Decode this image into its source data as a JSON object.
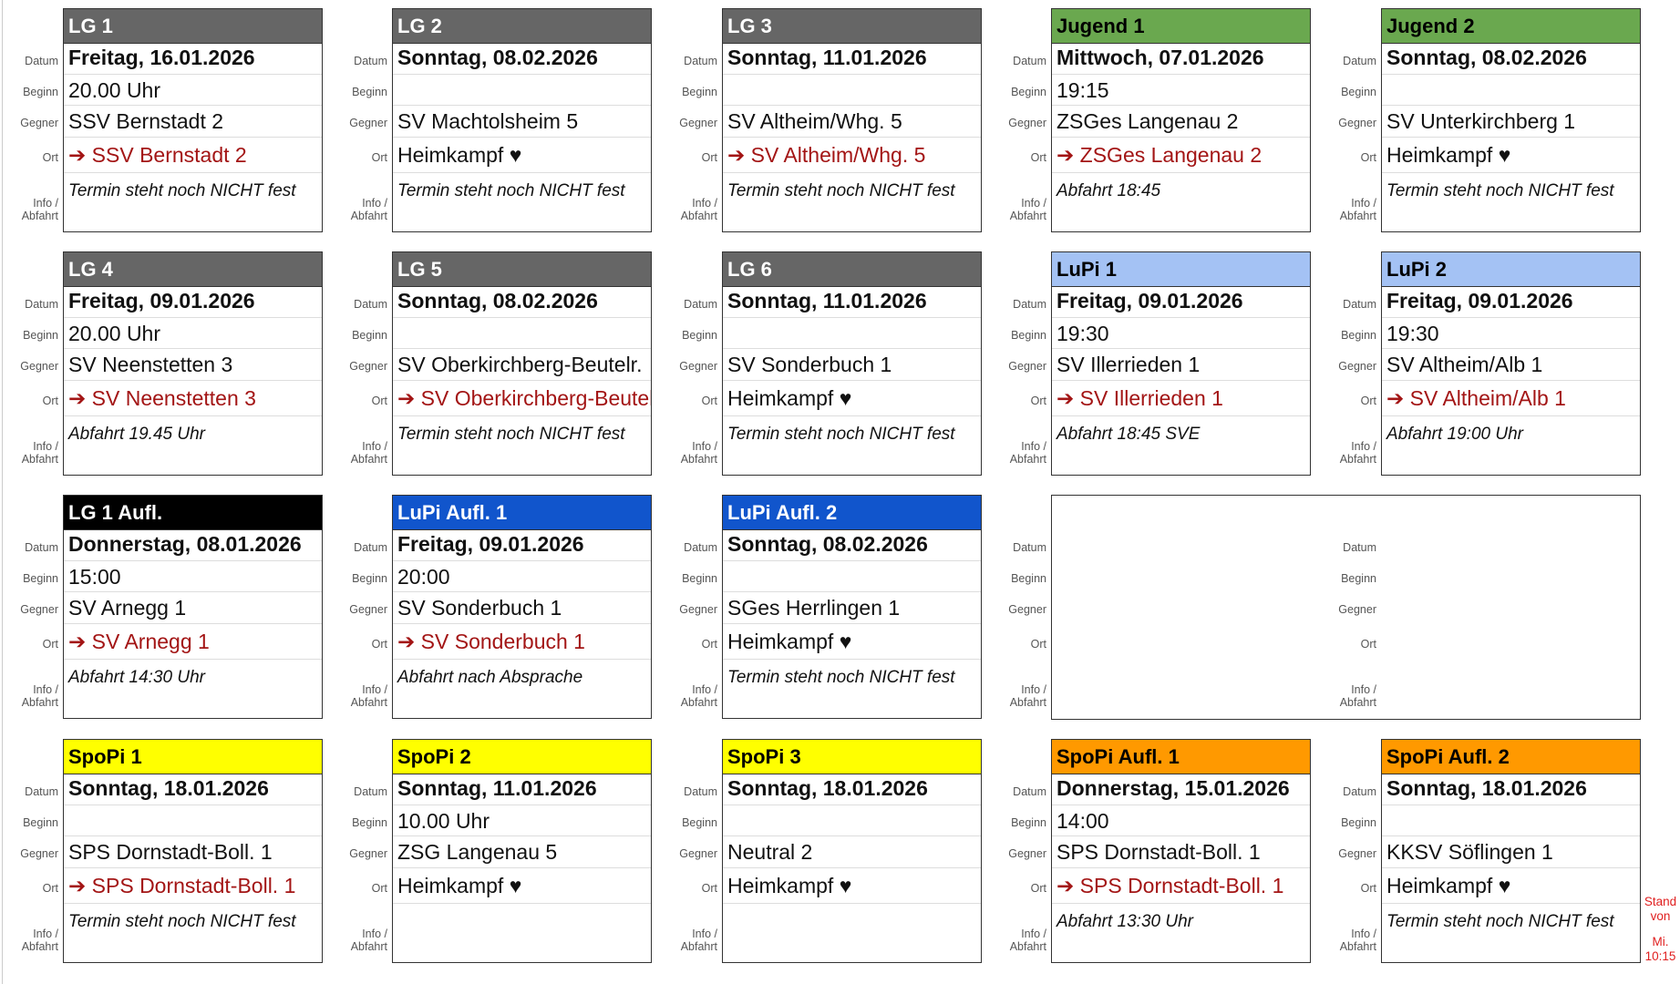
{
  "labels": {
    "datum": "Datum",
    "beginn": "Beginn",
    "gegner": "Gegner",
    "ort": "Ort",
    "info1": "Info /",
    "info2": "Abfahrt"
  },
  "cards": [
    {
      "team": "LG 1",
      "header_bg": "#666666",
      "header_fg": "#ffffff",
      "datum": "Freitag, 16.01.2026",
      "beginn": "20.00 Uhr",
      "gegner": "SSV Bernstadt 2",
      "ort": "➔ SSV Bernstadt 2",
      "away": true,
      "info": "Termin steht noch NICHT fest"
    },
    {
      "team": "LG 2",
      "header_bg": "#666666",
      "header_fg": "#ffffff",
      "datum": "Sonntag, 08.02.2026",
      "beginn": "",
      "gegner": "SV Machtolsheim 5",
      "ort": "Heimkampf ♥",
      "away": false,
      "info": "Termin steht noch NICHT fest"
    },
    {
      "team": "LG 3",
      "header_bg": "#666666",
      "header_fg": "#ffffff",
      "datum": "Sonntag, 11.01.2026",
      "beginn": "",
      "gegner": "SV Altheim/Whg. 5",
      "ort": "➔ SV Altheim/Whg. 5",
      "away": true,
      "info": "Termin steht noch NICHT fest"
    },
    {
      "team": "Jugend 1",
      "header_bg": "#6aa84f",
      "header_fg": "#000000",
      "datum": "Mittwoch, 07.01.2026",
      "beginn": "19:15",
      "gegner": "ZSGes Langenau 2",
      "ort": "➔ ZSGes Langenau 2",
      "away": true,
      "info": "Abfahrt 18:45"
    },
    {
      "team": "Jugend 2",
      "header_bg": "#6aa84f",
      "header_fg": "#000000",
      "datum": "Sonntag, 08.02.2026",
      "beginn": "",
      "gegner": "SV Unterkirchberg 1",
      "ort": "Heimkampf ♥",
      "away": false,
      "info": "Termin steht noch NICHT fest"
    },
    {
      "team": "LG 4",
      "header_bg": "#666666",
      "header_fg": "#ffffff",
      "datum": "Freitag, 09.01.2026",
      "beginn": "20.00 Uhr",
      "gegner": "SV Neenstetten 3",
      "ort": "➔ SV Neenstetten 3",
      "away": true,
      "info": "Abfahrt 19.45 Uhr"
    },
    {
      "team": "LG 5",
      "header_bg": "#666666",
      "header_fg": "#ffffff",
      "datum": "Sonntag, 08.02.2026",
      "beginn": "",
      "gegner": "SV Oberkirchberg-Beutelr.",
      "ort": "➔ SV Oberkirchberg-Beutelr.",
      "away": true,
      "info": "Termin steht noch NICHT fest"
    },
    {
      "team": "LG 6",
      "header_bg": "#666666",
      "header_fg": "#ffffff",
      "datum": "Sonntag, 11.01.2026",
      "beginn": "",
      "gegner": "SV Sonderbuch 1",
      "ort": "Heimkampf ♥",
      "away": false,
      "info": "Termin steht noch NICHT fest"
    },
    {
      "team": "LuPi 1",
      "header_bg": "#a4c2f4",
      "header_fg": "#000000",
      "datum": "Freitag, 09.01.2026",
      "beginn": "19:30",
      "gegner": "SV Illerrieden 1",
      "ort": "➔ SV Illerrieden 1",
      "away": true,
      "info": "Abfahrt 18:45 SVE"
    },
    {
      "team": "LuPi 2",
      "header_bg": "#a4c2f4",
      "header_fg": "#000000",
      "datum": "Freitag, 09.01.2026",
      "beginn": "19:30",
      "gegner": "SV Altheim/Alb 1",
      "ort": "➔ SV Altheim/Alb 1",
      "away": true,
      "info": "Abfahrt 19:00 Uhr"
    },
    {
      "team": "LG 1 Aufl.",
      "header_bg": "#000000",
      "header_fg": "#ffffff",
      "datum": "Donnerstag, 08.01.2026",
      "beginn": "15:00",
      "gegner": "SV Arnegg 1",
      "ort": "➔ SV Arnegg 1",
      "away": true,
      "info": "Abfahrt 14:30 Uhr"
    },
    {
      "team": "LuPi Aufl. 1",
      "header_bg": "#1155cc",
      "header_fg": "#ffffff",
      "datum": "Freitag, 09.01.2026",
      "beginn": "20:00",
      "gegner": "SV Sonderbuch 1",
      "ort": "➔ SV Sonderbuch 1",
      "away": true,
      "info": "Abfahrt nach Absprache"
    },
    {
      "team": "LuPi Aufl. 2",
      "header_bg": "#1155cc",
      "header_fg": "#ffffff",
      "datum": "Sonntag, 08.02.2026",
      "beginn": "",
      "gegner": "SGes Herrlingen 1",
      "ort": "Heimkampf ♥",
      "away": false,
      "info": "Termin steht noch NICHT fest"
    },
    null,
    null,
    {
      "team": "SpoPi 1",
      "header_bg": "#ffff00",
      "header_fg": "#000000",
      "datum": "Sonntag, 18.01.2026",
      "beginn": "",
      "gegner": "SPS Dornstadt-Boll. 1",
      "ort": "➔ SPS Dornstadt-Boll. 1",
      "away": true,
      "info": "Termin steht noch NICHT fest"
    },
    {
      "team": "SpoPi 2",
      "header_bg": "#ffff00",
      "header_fg": "#000000",
      "datum": "Sonntag, 11.01.2026",
      "beginn": "10.00 Uhr",
      "gegner": "ZSG Langenau 5",
      "ort": "Heimkampf ♥",
      "away": false,
      "info": ""
    },
    {
      "team": "SpoPi 3",
      "header_bg": "#ffff00",
      "header_fg": "#000000",
      "datum": "Sonntag, 18.01.2026",
      "beginn": "",
      "gegner": "Neutral 2",
      "ort": "Heimkampf ♥",
      "away": false,
      "info": ""
    },
    {
      "team": "SpoPi Aufl. 1",
      "header_bg": "#ff9900",
      "header_fg": "#000000",
      "datum": "Donnerstag, 15.01.2026",
      "beginn": "14:00",
      "gegner": "SPS Dornstadt-Boll. 1",
      "ort": "➔ SPS Dornstadt-Boll. 1",
      "away": true,
      "info": "Abfahrt 13:30 Uhr"
    },
    {
      "team": "SpoPi Aufl. 2",
      "header_bg": "#ff9900",
      "header_fg": "#000000",
      "datum": "Sonntag, 18.01.2026",
      "beginn": "",
      "gegner": "KKSV Söflingen 1",
      "ort": "Heimkampf ♥",
      "away": false,
      "info": "Termin steht noch NICHT fest"
    }
  ],
  "stand": {
    "line1": "Stand",
    "line2": "von",
    "line3": "Mi.",
    "line4": "10:15"
  },
  "colors": {
    "away_text": "#a31515",
    "stand_text": "#e02020"
  }
}
